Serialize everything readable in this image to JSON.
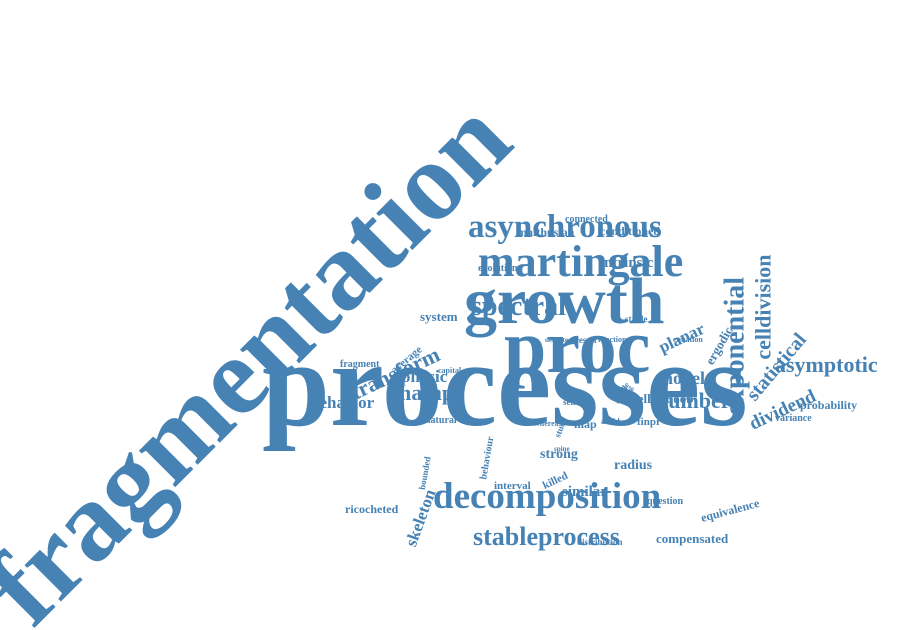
{
  "colors": {
    "word": "#4682b4",
    "background": "#ffffff"
  },
  "words": [
    {
      "id": "fragmentation",
      "text": "fragmentation"
    },
    {
      "id": "processes",
      "text": "processes"
    },
    {
      "id": "growth",
      "text": "growth"
    },
    {
      "id": "proc",
      "text": "proc"
    },
    {
      "id": "martingale",
      "text": "martingale"
    },
    {
      "id": "asynchronous",
      "text": "asynchronous"
    },
    {
      "id": "decomposition",
      "text": "decomposition"
    },
    {
      "id": "stableprocess",
      "text": "stableprocess"
    },
    {
      "id": "spectral",
      "text": "spectral"
    },
    {
      "id": "exponential",
      "text": "exponential"
    },
    {
      "id": "celldivision",
      "text": "celldivision"
    },
    {
      "id": "statistical",
      "text": "statistical"
    },
    {
      "id": "asymptotic",
      "text": "asymptotic"
    },
    {
      "id": "transform",
      "text": "transform"
    },
    {
      "id": "mathpr",
      "text": "mathpr"
    },
    {
      "id": "number",
      "text": "number"
    },
    {
      "id": "model",
      "text": "model"
    },
    {
      "id": "dividend",
      "text": "dividend"
    },
    {
      "id": "behavior",
      "text": "behavior"
    },
    {
      "id": "physic",
      "text": "physic"
    },
    {
      "id": "planar",
      "text": "planar"
    },
    {
      "id": "ergodic",
      "text": "ergodic"
    },
    {
      "id": "intrinsic",
      "text": "intrinsic"
    },
    {
      "id": "conditioned",
      "text": "conditioned"
    },
    {
      "id": "malthusian",
      "text": "malthusian"
    },
    {
      "id": "connected",
      "text": "connected"
    },
    {
      "id": "system",
      "text": "system"
    },
    {
      "id": "evolution",
      "text": "evolution"
    },
    {
      "id": "average",
      "text": "average"
    },
    {
      "id": "fragment",
      "text": "fragment"
    },
    {
      "id": "probability",
      "text": "probability"
    },
    {
      "id": "variance",
      "text": "variance"
    },
    {
      "id": "cell",
      "text": "cell"
    },
    {
      "id": "doob",
      "text": "doob"
    },
    {
      "id": "map",
      "text": "map"
    },
    {
      "id": "finpr",
      "text": "finpr"
    },
    {
      "id": "strong",
      "text": "strong"
    },
    {
      "id": "radius",
      "text": "radius"
    },
    {
      "id": "killed",
      "text": "killed"
    },
    {
      "id": "similar",
      "text": "similar"
    },
    {
      "id": "interval",
      "text": "interval"
    },
    {
      "id": "skeleton",
      "text": "skeleton"
    },
    {
      "id": "ricocheted",
      "text": "ricocheted"
    },
    {
      "id": "bounded",
      "text": "bounded"
    },
    {
      "id": "behaviour",
      "text": "behaviour"
    },
    {
      "id": "natural",
      "text": "natural"
    },
    {
      "id": "question",
      "text": "question"
    },
    {
      "id": "equivalence",
      "text": "equivalence"
    },
    {
      "id": "compensated",
      "text": "compensated"
    },
    {
      "id": "distribution",
      "text": "distribution"
    },
    {
      "id": "stable",
      "text": "stable"
    },
    {
      "id": "result",
      "text": "result"
    },
    {
      "id": "function",
      "text": "function"
    },
    {
      "id": "delicate",
      "text": "delicate"
    },
    {
      "id": "equation",
      "text": "equation"
    },
    {
      "id": "capital",
      "text": "capital"
    },
    {
      "id": "self",
      "text": "self"
    },
    {
      "id": "whereas",
      "text": "whereas"
    },
    {
      "id": "study",
      "text": "study"
    },
    {
      "id": "term",
      "text": "term"
    },
    {
      "id": "avoid",
      "text": "avoid"
    },
    {
      "id": "profile",
      "text": "profile"
    },
    {
      "id": "article",
      "text": "article"
    },
    {
      "id": "spine",
      "text": "spine"
    }
  ]
}
